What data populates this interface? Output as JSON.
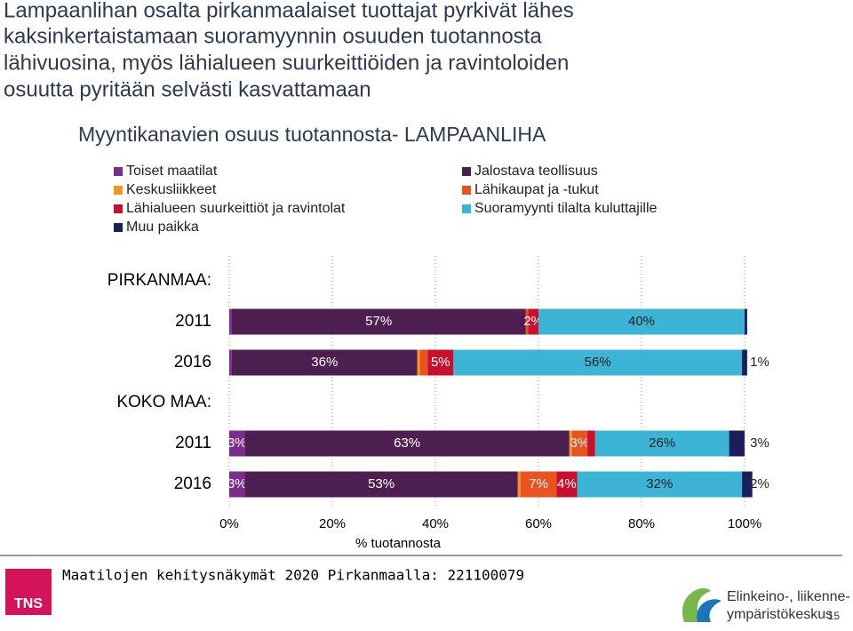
{
  "slide": {
    "headline": [
      "Lampaanlihan osalta pirkanmaalaiset tuottajat pyrkivät lähes",
      "kaksinkertaistamaan suoramyynnin osuuden tuotannosta",
      "lähivuosina, myös lähialueen suurkeittiöiden ja ravintoloiden",
      "osuutta pyritään selvästi kasvattamaan"
    ],
    "footer": "Maatilojen kehitysnäkymät 2020 Pirkanmaalla: 221100079",
    "logo_left": "TNS",
    "logo_right": [
      "Elinkeino-, liikenne- ja",
      "ympäristökeskus"
    ],
    "page_number": "15"
  },
  "chart_data": {
    "type": "stacked-barh",
    "title": "Myyntikanavien osuus tuotannosta- LAMPAANLIHA",
    "group_labels": [
      "PIRKANMAA:",
      "KOKO MAA:"
    ],
    "categories": [
      "2011",
      "2016",
      "2011",
      "2016"
    ],
    "x_label": "% tuotannosta",
    "xlim": [
      0,
      100
    ],
    "xticks": [
      {
        "value": 0,
        "label": "0%"
      },
      {
        "value": 20,
        "label": "20%"
      },
      {
        "value": 40,
        "label": "40%"
      },
      {
        "value": 60,
        "label": "60%"
      },
      {
        "value": 80,
        "label": "80%"
      },
      {
        "value": 100,
        "label": "100%"
      }
    ],
    "grid": true,
    "series": [
      {
        "name": "Toiset maatilat",
        "color": "#7b2d8e",
        "values": [
          0.5,
          0.5,
          3,
          3
        ],
        "value_labels": [
          null,
          null,
          "3%",
          "3%"
        ]
      },
      {
        "name": "Jalostava teollisuus",
        "color": "#4d1f50",
        "values": [
          57,
          36,
          63,
          53
        ],
        "value_labels": [
          "57%",
          "36%",
          "63%",
          "53%"
        ]
      },
      {
        "name": "Keskusliikkeet",
        "color": "#f7941d",
        "values": [
          0,
          0.5,
          0.5,
          0.5
        ],
        "value_labels": [
          null,
          null,
          null,
          null
        ]
      },
      {
        "name": "Lähikaupat ja -tukut",
        "color": "#e8531f",
        "values": [
          0.5,
          1.5,
          3,
          7
        ],
        "value_labels": [
          null,
          null,
          "3%",
          "7%"
        ]
      },
      {
        "name": "Lähialueen suurkeittiöt ja ravintolat",
        "color": "#c8102e",
        "values": [
          2,
          5,
          1.5,
          4
        ],
        "value_labels": [
          "2%",
          "5%",
          null,
          "4%"
        ]
      },
      {
        "name": "Suoramyynti tilalta kuluttajille",
        "color": "#3cb4d5",
        "values": [
          40,
          56,
          26,
          32
        ],
        "value_labels": [
          "40%",
          "56%",
          "26%",
          "32%"
        ]
      },
      {
        "name": "Muu paikka",
        "color": "#1a1f5c",
        "values": [
          0.5,
          1,
          3,
          2
        ],
        "value_labels": [
          null,
          "1%",
          "3%",
          "2%"
        ]
      }
    ]
  }
}
